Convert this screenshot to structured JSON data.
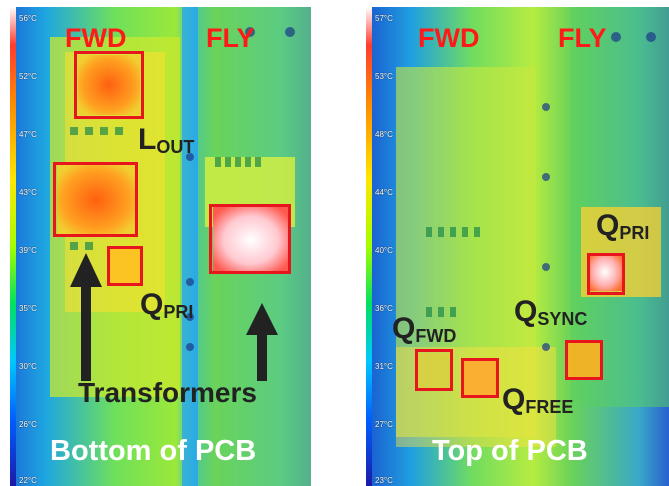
{
  "colors": {
    "annotation_red": "#e8141e",
    "label_red": "#ff1a1a",
    "label_dark": "#222222",
    "label_white": "#ffffff"
  },
  "left_panel": {
    "scale_ticks": [
      "56°C",
      "52°C",
      "47°C",
      "43°C",
      "39°C",
      "35°C",
      "30°C",
      "26°C",
      "22°C"
    ],
    "label_fwd": "FWD",
    "label_fly": "FLY",
    "label_lout_main": "L",
    "label_lout_sub": "OUT",
    "label_qpri_main": "Q",
    "label_qpri_sub": "PRI",
    "label_transformers": "Transformers",
    "caption": "Bottom of PCB",
    "arrow_icon": "up-arrow-icon"
  },
  "right_panel": {
    "scale_ticks": [
      "57°C",
      "53°C",
      "48°C",
      "44°C",
      "40°C",
      "36°C",
      "31°C",
      "27°C",
      "23°C"
    ],
    "label_fwd": "FWD",
    "label_fly": "FLY",
    "label_qpri_main": "Q",
    "label_qpri_sub": "PRI",
    "label_qfwd_main": "Q",
    "label_qfwd_sub": "FWD",
    "label_qsync_main": "Q",
    "label_qsync_sub": "SYNC",
    "label_qfree_main": "Q",
    "label_qfree_sub": "FREE",
    "caption": "Top of PCB"
  }
}
